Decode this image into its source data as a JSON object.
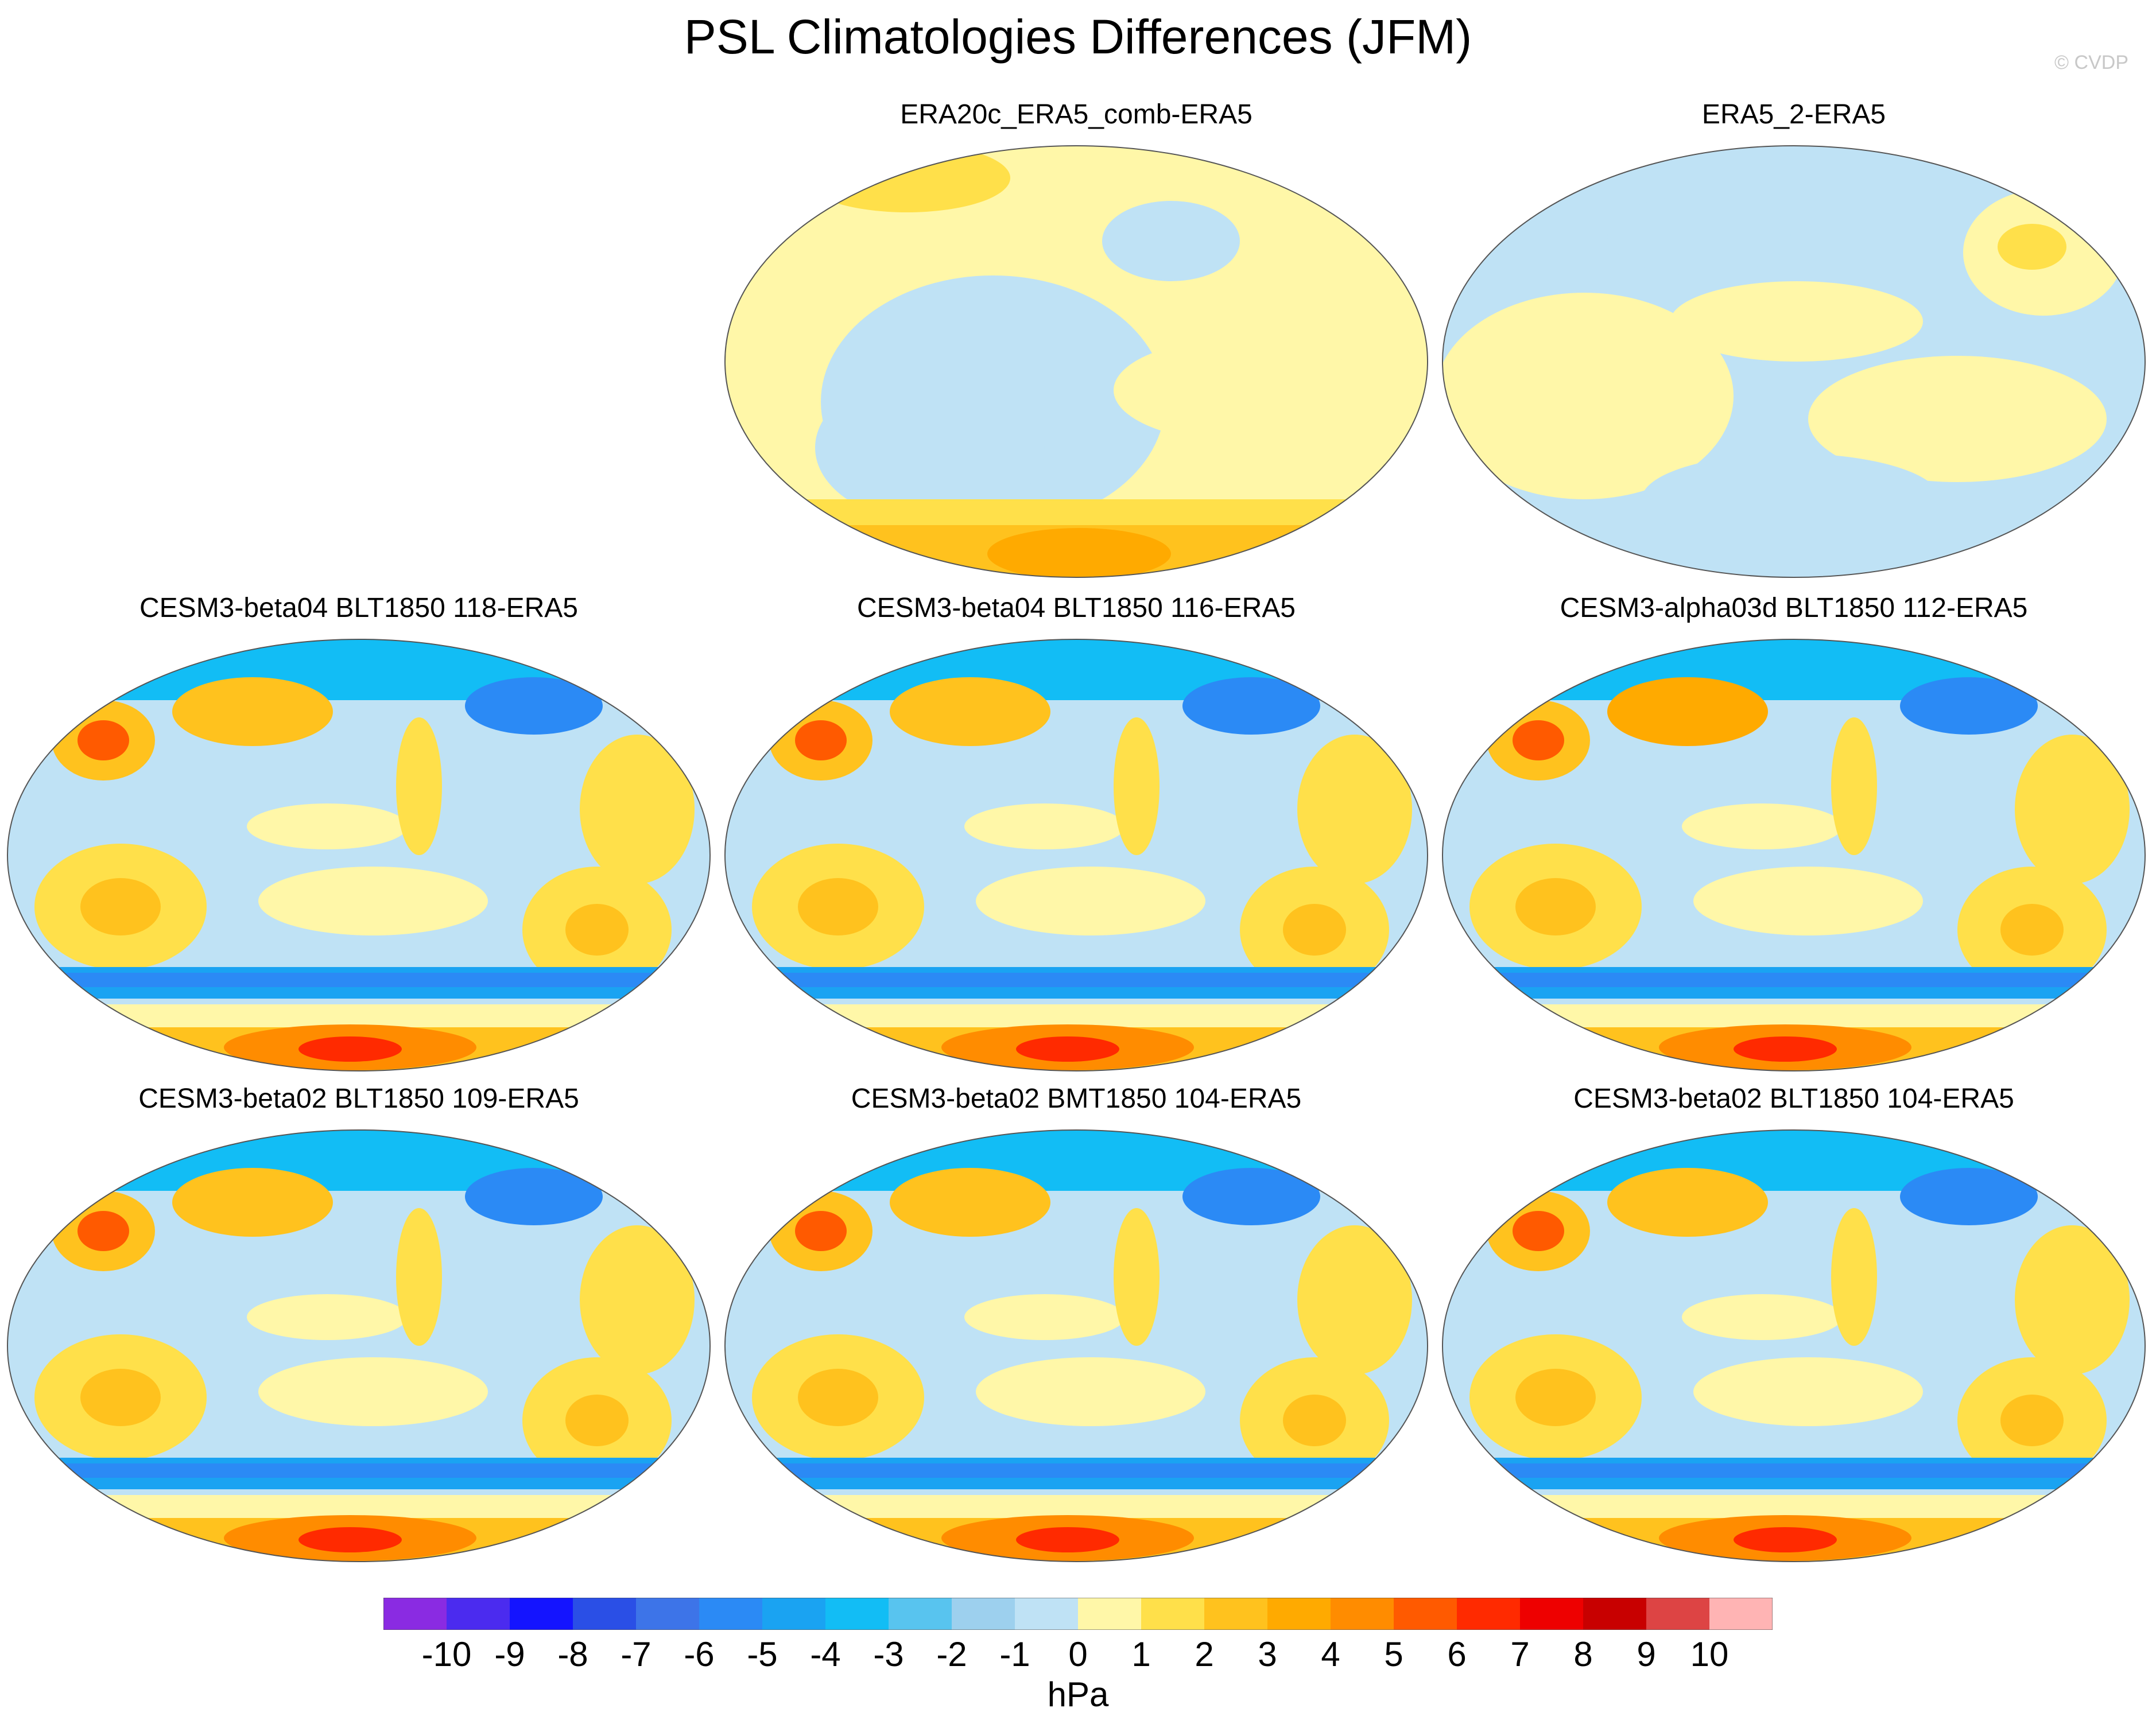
{
  "title": "PSL Climatologies Differences (JFM)",
  "credit": "© CVDP",
  "colorbar": {
    "units": "hPa",
    "ticks": [
      "-10",
      "-9",
      "-8",
      "-7",
      "-6",
      "-5",
      "-4",
      "-3",
      "-2",
      "-1",
      "0",
      "1",
      "2",
      "3",
      "4",
      "5",
      "6",
      "7",
      "8",
      "9",
      "10"
    ],
    "colors": [
      "#8a2be2",
      "#4b2bef",
      "#1414ff",
      "#2a4fe6",
      "#3d74e8",
      "#2b8af5",
      "#1aa3f2",
      "#12bdf5",
      "#58c4ef",
      "#9dd0ee",
      "#bfe2f5",
      "#fff7a8",
      "#ffe04a",
      "#ffc21e",
      "#ffaa00",
      "#ff8c00",
      "#ff5a00",
      "#ff2a00",
      "#ee0000",
      "#c80000",
      "#dd4444",
      "#ffb4b4"
    ]
  },
  "panels": [
    {
      "title": "ERA20c_ERA5_comb-ERA5",
      "style": "era20c"
    },
    {
      "title": "ERA5_2-ERA5",
      "style": "era5"
    },
    {
      "title": "CESM3-beta04 BLT1850 118-ERA5",
      "style": "model"
    },
    {
      "title": "CESM3-beta04 BLT1850 116-ERA5",
      "style": "model"
    },
    {
      "title": "CESM3-alpha03d BLT1850 112-ERA5",
      "style": "model"
    },
    {
      "title": "CESM3-beta02 BLT1850 109-ERA5",
      "style": "model"
    },
    {
      "title": "CESM3-beta02 BMT1850 104-ERA5",
      "style": "model"
    },
    {
      "title": "CESM3-beta02 BLT1850 104-ERA5",
      "style": "model"
    }
  ]
}
